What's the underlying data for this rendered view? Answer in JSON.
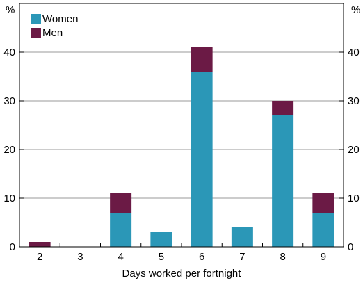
{
  "chart_data": {
    "type": "bar",
    "stacked": true,
    "categories": [
      "2",
      "3",
      "4",
      "5",
      "6",
      "7",
      "8",
      "9"
    ],
    "series": [
      {
        "name": "Women",
        "color": "#2b97b7",
        "values": [
          0,
          0,
          7,
          3,
          36,
          4,
          27,
          7
        ]
      },
      {
        "name": "Men",
        "color": "#6b1a45",
        "values": [
          1,
          0,
          4,
          0,
          5,
          0,
          3,
          4
        ]
      }
    ],
    "xlabel": "Days worked per fortnight",
    "ylabel_left": "%",
    "ylabel_right": "%",
    "ylim": [
      0,
      50
    ],
    "yticks": [
      0,
      10,
      20,
      30,
      40
    ],
    "legend_position": "top-left",
    "grid": true
  }
}
